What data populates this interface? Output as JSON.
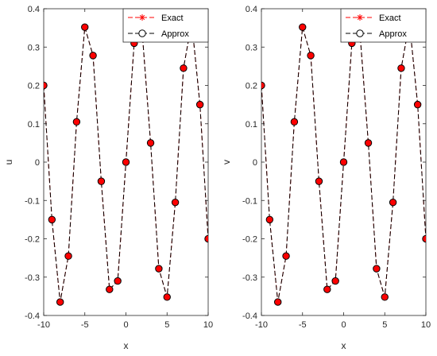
{
  "chart_data": [
    {
      "type": "line",
      "xlabel": "x",
      "ylabel": "u",
      "xlim": [
        -10,
        10
      ],
      "ylim": [
        -0.4,
        0.4
      ],
      "xticks": [
        "-10",
        "-5",
        "0",
        "5",
        "10"
      ],
      "yticks": [
        "-0.4",
        "-0.3",
        "-0.2",
        "-0.1",
        "0",
        "0.1",
        "0.2",
        "0.3",
        "0.4"
      ],
      "grid": false,
      "legend_position": "top-right",
      "x": [
        -10,
        -9,
        -8,
        -7,
        -6,
        -5,
        -4,
        -3,
        -2,
        -1,
        0,
        1,
        2,
        3,
        4,
        5,
        6,
        7,
        8,
        9,
        10
      ],
      "series": [
        {
          "name": "Exact",
          "style": "red dashed line with asterisk markers",
          "color": "#ff0000",
          "values": [
            0.2,
            -0.15,
            -0.365,
            -0.245,
            0.105,
            0.352,
            0.278,
            -0.05,
            -0.332,
            -0.31,
            0.0,
            0.31,
            0.332,
            0.05,
            -0.278,
            -0.352,
            -0.105,
            0.245,
            0.365,
            0.15,
            -0.2
          ]
        },
        {
          "name": "Approx",
          "style": "black dashed line with open circle markers",
          "color": "#000000",
          "values": [
            0.2,
            -0.15,
            -0.365,
            -0.245,
            0.105,
            0.352,
            0.278,
            -0.05,
            -0.332,
            -0.31,
            0.0,
            0.31,
            0.332,
            0.05,
            -0.278,
            -0.352,
            -0.105,
            0.245,
            0.365,
            0.15,
            -0.2
          ]
        }
      ]
    },
    {
      "type": "line",
      "xlabel": "x",
      "ylabel": "v",
      "xlim": [
        -10,
        10
      ],
      "ylim": [
        -0.4,
        0.4
      ],
      "xticks": [
        "-10",
        "-5",
        "0",
        "5",
        "10"
      ],
      "yticks": [
        "-0.4",
        "-0.3",
        "-0.2",
        "-0.1",
        "0",
        "0.1",
        "0.2",
        "0.3",
        "0.4"
      ],
      "grid": false,
      "legend_position": "top-right",
      "x": [
        -10,
        -9,
        -8,
        -7,
        -6,
        -5,
        -4,
        -3,
        -2,
        -1,
        0,
        1,
        2,
        3,
        4,
        5,
        6,
        7,
        8,
        9,
        10
      ],
      "series": [
        {
          "name": "Exact",
          "style": "red dashed line with asterisk markers",
          "color": "#ff0000",
          "values": [
            0.2,
            -0.15,
            -0.365,
            -0.245,
            0.105,
            0.352,
            0.278,
            -0.05,
            -0.332,
            -0.31,
            0.0,
            0.31,
            0.332,
            0.05,
            -0.278,
            -0.352,
            -0.105,
            0.245,
            0.365,
            0.15,
            -0.2
          ]
        },
        {
          "name": "Approx",
          "style": "black dashed line with open circle markers",
          "color": "#000000",
          "values": [
            0.2,
            -0.15,
            -0.365,
            -0.245,
            0.105,
            0.352,
            0.278,
            -0.05,
            -0.332,
            -0.31,
            0.0,
            0.31,
            0.332,
            0.05,
            -0.278,
            -0.352,
            -0.105,
            0.245,
            0.365,
            0.15,
            -0.2
          ]
        }
      ]
    }
  ]
}
